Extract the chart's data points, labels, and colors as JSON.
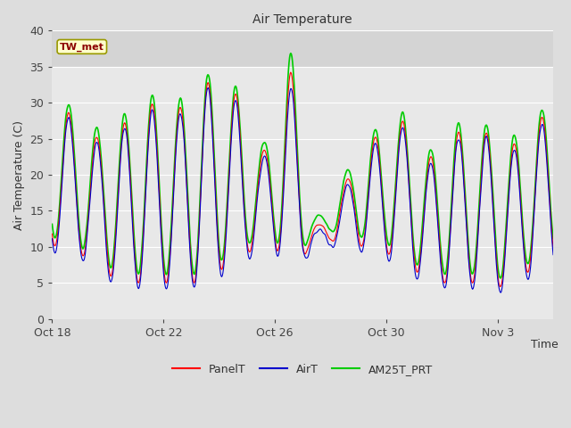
{
  "title": "Air Temperature",
  "xlabel": "Time",
  "ylabel": "Air Temperature (C)",
  "ylim": [
    0,
    40
  ],
  "yticks": [
    0,
    5,
    10,
    15,
    20,
    25,
    30,
    35,
    40
  ],
  "annotation_text": "TW_met",
  "annotation_color": "#8B0000",
  "annotation_bg": "#FFFFCC",
  "annotation_border": "#999900",
  "line_colors": {
    "PanelT": "#FF0000",
    "AirT": "#0000CC",
    "AM25T_PRT": "#00CC00"
  },
  "line_widths": {
    "PanelT": 0.8,
    "AirT": 0.8,
    "AM25T_PRT": 1.2
  },
  "fig_bg": "#DDDDDD",
  "plot_bg": "#E8E8E8",
  "upper_band_bg": "#D0D0D0",
  "grid_color": "#FFFFFF",
  "xtick_labels": [
    "Oct 18",
    "Oct 22",
    "Oct 26",
    "Oct 30",
    "Nov 3"
  ],
  "figsize": [
    6.4,
    4.8
  ],
  "dpi": 100,
  "n_days": 18,
  "samples_per_day": 48
}
